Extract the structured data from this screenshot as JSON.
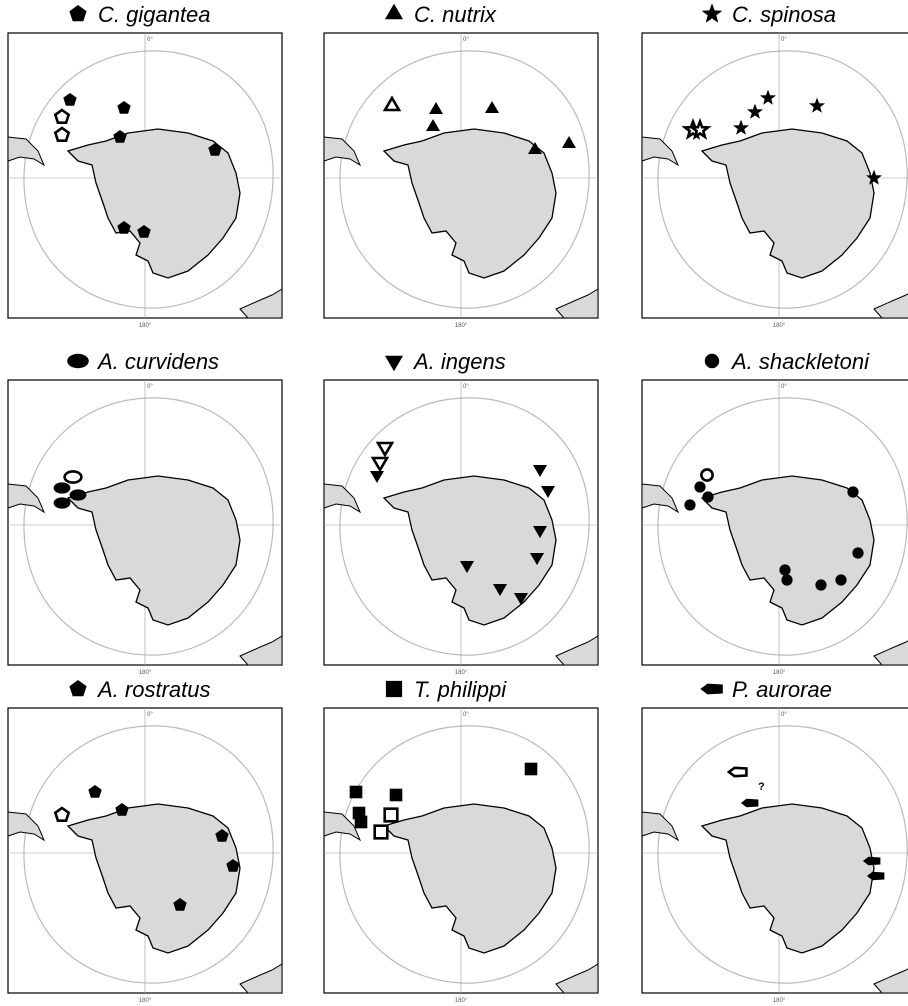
{
  "panels": [
    {
      "title": "C. gigantea",
      "top_label": "0°",
      "bottom_label": "180°"
    },
    {
      "title": "C. nutrix",
      "top_label": "0°",
      "bottom_label": "180°"
    },
    {
      "title": "C. spinosa",
      "top_label": "0°",
      "bottom_label": "180°"
    },
    {
      "title": "A. curvidens",
      "top_label": "0°",
      "bottom_label": "180°"
    },
    {
      "title": "A. ingens",
      "top_label": "0°",
      "bottom_label": "180°"
    },
    {
      "title": "A. shackletoni",
      "top_label": "0°",
      "bottom_label": "180°"
    },
    {
      "title": "A. rostratus",
      "top_label": "0°",
      "bottom_label": "180°"
    },
    {
      "title": "T. philippi",
      "top_label": "0°",
      "bottom_label": "180°"
    },
    {
      "title": "P. aurorae",
      "top_label": "0°",
      "bottom_label": "180°",
      "annotation": "?"
    }
  ]
}
